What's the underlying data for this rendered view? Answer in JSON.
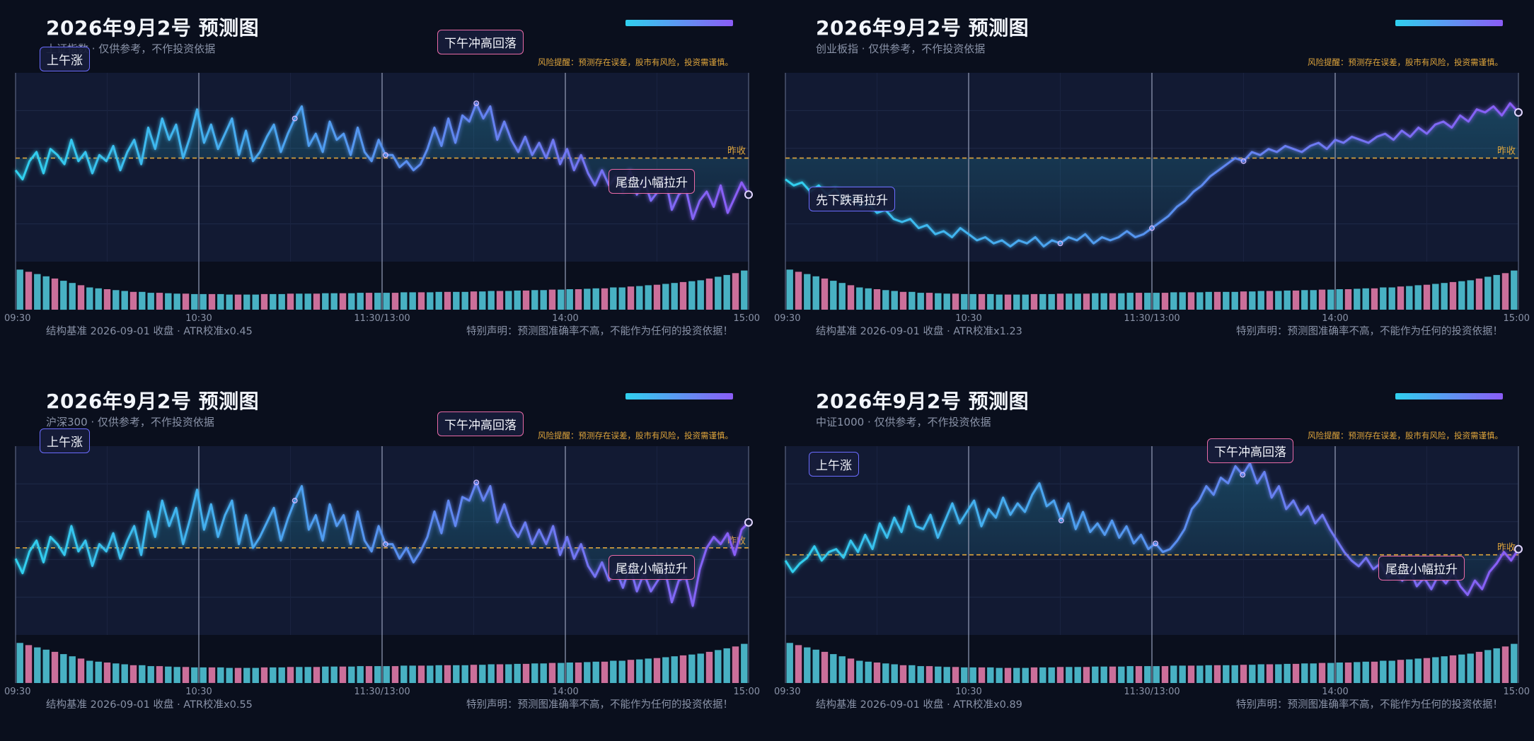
{
  "panels": [
    {
      "title": "2026年9月2号 预测图",
      "subtitle": "上证指数 · 仅供参考，不作投资依据",
      "risk_note": "风险提醒：预测存在误差，股市有风险，投资需谨慎。",
      "footer_left": "结构基准 2026-09-01 收盘 · ATR校准x0.45",
      "footer_right": "特别声明：预测图准确率不高，不能作为任何的投资依据！",
      "annotations": [
        "上午涨",
        "下午冲高回落",
        "尾盘小幅拉升"
      ],
      "prev_close_label": "昨收"
    },
    {
      "title": "2026年9月2号 预测图",
      "subtitle": "创业板指 · 仅供参考，不作投资依据",
      "risk_note": "风险提醒：预测存在误差，股市有风险，投资需谨慎。",
      "footer_left": "结构基准 2026-09-01 收盘 · ATR校准x1.23",
      "footer_right": "特别声明：预测图准确率不高，不能作为任何的投资依据！",
      "annotations": [
        "先下跌再拉升"
      ],
      "prev_close_label": "昨收"
    },
    {
      "title": "2026年9月2号 预测图",
      "subtitle": "沪深300 · 仅供参考，不作投资依据",
      "risk_note": "风险提醒：预测存在误差，股市有风险，投资需谨慎。",
      "footer_left": "结构基准 2026-09-01 收盘 · ATR校准x0.55",
      "footer_right": "特别声明：预测图准确率不高，不能作为任何的投资依据！",
      "annotations": [
        "上午涨",
        "下午冲高回落",
        "尾盘小幅拉升"
      ],
      "prev_close_label": "昨收"
    },
    {
      "title": "2026年9月2号 预测图",
      "subtitle": "中证1000 · 仅供参考，不作投资依据",
      "risk_note": "风险提醒：预测存在误差，股市有风险，投资需谨慎。",
      "footer_left": "结构基准 2026-09-01 收盘 · ATR校准x0.89",
      "footer_right": "特别声明：预测图准确率不高，不能作为任何的投资依据！",
      "annotations": [
        "上午涨",
        "下午冲高回落",
        "尾盘小幅拉升"
      ],
      "prev_close_label": "昨收"
    }
  ],
  "colors": {
    "background": "#0a0f1d",
    "plot_bg": "#121a33",
    "line_start": "#2fd0ee",
    "line_end": "#8b5cf6",
    "prev_close": "#e0a63c",
    "volume_up": "#4fc3d6",
    "volume_down": "#e07aa8",
    "risk_text": "#e0a63c"
  },
  "icons": [
    "gradient-legend-bar",
    "session-marker-dot",
    "end-point-ring"
  ],
  "chart_data": [
    {
      "type": "line",
      "x_ticks": [
        "09:30",
        "10:30",
        "11:30/13:00",
        "14:00",
        "15:00"
      ],
      "ylabel": "",
      "prev_close": 0,
      "y_range": [
        -1.7,
        1.4
      ],
      "y_unit": "relative to prev close",
      "series": [
        {
          "name": "",
          "values": [
            -0.2,
            -0.35,
            -0.05,
            0.1,
            -0.25,
            0.15,
            0.05,
            -0.1,
            0.3,
            -0.05,
            0.1,
            -0.25,
            0.05,
            -0.05,
            0.2,
            -0.2,
            0.1,
            0.3,
            -0.1,
            0.5,
            0.15,
            0.65,
            0.3,
            0.55,
            0.0,
            0.35,
            0.8,
            0.25,
            0.55,
            0.15,
            0.4,
            0.65,
            0.05,
            0.45,
            -0.05,
            0.1,
            0.35,
            0.55,
            0.1,
            0.4,
            0.65,
            0.85,
            0.2,
            0.4,
            0.1,
            0.6,
            0.3,
            0.4,
            0.05,
            0.5,
            0.1,
            -0.05,
            0.3,
            0.05,
            0.05,
            -0.15,
            -0.05,
            -0.2,
            -0.1,
            0.15,
            0.5,
            0.2,
            0.65,
            0.25,
            0.7,
            0.6,
            0.9,
            0.65,
            0.85,
            0.3,
            0.6,
            0.3,
            0.1,
            0.35,
            0.05,
            0.25,
            0.0,
            0.3,
            -0.1,
            0.15,
            -0.2,
            0.05,
            -0.25,
            -0.45,
            -0.2,
            -0.45,
            -0.3,
            -0.55,
            -0.2,
            -0.6,
            -0.35,
            -0.7,
            -0.55,
            -0.3,
            -0.85,
            -0.6,
            -0.5,
            -1.0,
            -0.7,
            -0.55,
            -0.8,
            -0.45,
            -0.9,
            -0.65,
            -0.4,
            -0.6
          ]
        }
      ],
      "volume": [
        0.9,
        0.85,
        0.8,
        0.75,
        0.7,
        0.65,
        0.6,
        0.55,
        0.5,
        0.48,
        0.46,
        0.44,
        0.42,
        0.4,
        0.4,
        0.38,
        0.38,
        0.37,
        0.36,
        0.36,
        0.35,
        0.35,
        0.35,
        0.35,
        0.34,
        0.34,
        0.34,
        0.34,
        0.35,
        0.35,
        0.35,
        0.36,
        0.36,
        0.36,
        0.36,
        0.37,
        0.37,
        0.37,
        0.37,
        0.38,
        0.38,
        0.38,
        0.38,
        0.38,
        0.39,
        0.39,
        0.39,
        0.39,
        0.4,
        0.4,
        0.4,
        0.4,
        0.41,
        0.41,
        0.42,
        0.42,
        0.42,
        0.43,
        0.43,
        0.44,
        0.44,
        0.45,
        0.45,
        0.46,
        0.46,
        0.47,
        0.48,
        0.48,
        0.5,
        0.5,
        0.52,
        0.53,
        0.55,
        0.56,
        0.58,
        0.6,
        0.62,
        0.64,
        0.66,
        0.7,
        0.74,
        0.78,
        0.82,
        0.88
      ]
    },
    {
      "type": "line",
      "x_ticks": [
        "09:30",
        "10:30",
        "11:30/13:00",
        "14:00",
        "15:00"
      ],
      "ylabel": "",
      "prev_close": 0,
      "y_range": [
        -1.7,
        1.4
      ],
      "y_unit": "relative to prev close",
      "series": [
        {
          "name": "",
          "values": [
            -0.35,
            -0.45,
            -0.4,
            -0.55,
            -0.45,
            -0.6,
            -0.5,
            -0.7,
            -0.65,
            -0.8,
            -0.75,
            -0.9,
            -0.85,
            -1.0,
            -1.05,
            -1.0,
            -1.15,
            -1.1,
            -1.25,
            -1.2,
            -1.3,
            -1.15,
            -1.25,
            -1.35,
            -1.3,
            -1.4,
            -1.35,
            -1.45,
            -1.35,
            -1.4,
            -1.3,
            -1.45,
            -1.35,
            -1.4,
            -1.3,
            -1.35,
            -1.25,
            -1.4,
            -1.3,
            -1.35,
            -1.3,
            -1.2,
            -1.3,
            -1.25,
            -1.15,
            -1.05,
            -0.95,
            -0.8,
            -0.7,
            -0.55,
            -0.45,
            -0.3,
            -0.2,
            -0.1,
            0.0,
            -0.05,
            0.1,
            0.05,
            0.15,
            0.1,
            0.2,
            0.15,
            0.1,
            0.2,
            0.25,
            0.15,
            0.3,
            0.25,
            0.35,
            0.3,
            0.25,
            0.35,
            0.4,
            0.3,
            0.45,
            0.35,
            0.5,
            0.4,
            0.55,
            0.6,
            0.5,
            0.7,
            0.6,
            0.8,
            0.75,
            0.85,
            0.7,
            0.9,
            0.75
          ]
        }
      ],
      "volume": [
        0.9,
        0.85,
        0.8,
        0.75,
        0.7,
        0.65,
        0.6,
        0.55,
        0.5,
        0.48,
        0.46,
        0.44,
        0.42,
        0.4,
        0.4,
        0.38,
        0.38,
        0.37,
        0.36,
        0.36,
        0.35,
        0.35,
        0.35,
        0.35,
        0.34,
        0.34,
        0.34,
        0.34,
        0.35,
        0.35,
        0.35,
        0.36,
        0.36,
        0.36,
        0.36,
        0.37,
        0.37,
        0.37,
        0.37,
        0.38,
        0.38,
        0.38,
        0.38,
        0.38,
        0.39,
        0.39,
        0.39,
        0.39,
        0.4,
        0.4,
        0.4,
        0.4,
        0.41,
        0.41,
        0.42,
        0.42,
        0.42,
        0.43,
        0.43,
        0.44,
        0.44,
        0.45,
        0.45,
        0.46,
        0.46,
        0.47,
        0.48,
        0.48,
        0.5,
        0.5,
        0.52,
        0.53,
        0.55,
        0.56,
        0.58,
        0.6,
        0.62,
        0.64,
        0.66,
        0.7,
        0.74,
        0.78,
        0.82,
        0.88
      ]
    },
    {
      "type": "line",
      "x_ticks": [
        "09:30",
        "10:30",
        "11:30/13:00",
        "14:00",
        "15:00"
      ],
      "ylabel": "",
      "prev_close": 0,
      "y_range": [
        -1.2,
        1.4
      ],
      "y_unit": "relative to prev close",
      "series": [
        {
          "name": "",
          "values": [
            -0.15,
            -0.35,
            -0.05,
            0.1,
            -0.2,
            0.15,
            0.05,
            -0.1,
            0.3,
            -0.05,
            0.1,
            -0.25,
            0.05,
            -0.05,
            0.2,
            -0.15,
            0.1,
            0.3,
            -0.1,
            0.5,
            0.15,
            0.65,
            0.3,
            0.55,
            0.05,
            0.4,
            0.8,
            0.25,
            0.6,
            0.15,
            0.45,
            0.65,
            0.05,
            0.45,
            0.0,
            0.15,
            0.35,
            0.55,
            0.1,
            0.4,
            0.65,
            0.85,
            0.25,
            0.45,
            0.1,
            0.6,
            0.3,
            0.45,
            0.05,
            0.5,
            0.1,
            -0.05,
            0.3,
            0.05,
            0.05,
            -0.15,
            0.0,
            -0.2,
            -0.05,
            0.15,
            0.5,
            0.2,
            0.65,
            0.3,
            0.7,
            0.65,
            0.9,
            0.65,
            0.85,
            0.35,
            0.6,
            0.3,
            0.15,
            0.35,
            0.05,
            0.25,
            0.05,
            0.3,
            -0.1,
            0.15,
            -0.15,
            0.05,
            -0.25,
            -0.4,
            -0.2,
            -0.45,
            -0.3,
            -0.55,
            -0.25,
            -0.6,
            -0.35,
            -0.6,
            -0.45,
            -0.3,
            -0.75,
            -0.45,
            -0.4,
            -0.8,
            -0.3,
            0.0,
            0.15,
            0.05,
            0.2,
            -0.1,
            0.25,
            0.35
          ]
        }
      ],
      "volume": [
        0.9,
        0.85,
        0.8,
        0.75,
        0.7,
        0.65,
        0.6,
        0.55,
        0.5,
        0.48,
        0.46,
        0.44,
        0.42,
        0.4,
        0.4,
        0.38,
        0.38,
        0.37,
        0.36,
        0.36,
        0.35,
        0.35,
        0.35,
        0.35,
        0.34,
        0.34,
        0.34,
        0.34,
        0.35,
        0.35,
        0.35,
        0.36,
        0.36,
        0.36,
        0.36,
        0.37,
        0.37,
        0.37,
        0.37,
        0.38,
        0.38,
        0.38,
        0.38,
        0.38,
        0.39,
        0.39,
        0.39,
        0.39,
        0.4,
        0.4,
        0.4,
        0.4,
        0.41,
        0.41,
        0.42,
        0.42,
        0.42,
        0.43,
        0.43,
        0.44,
        0.44,
        0.45,
        0.45,
        0.46,
        0.46,
        0.47,
        0.48,
        0.48,
        0.5,
        0.5,
        0.52,
        0.53,
        0.55,
        0.56,
        0.58,
        0.6,
        0.62,
        0.64,
        0.66,
        0.7,
        0.74,
        0.78,
        0.82,
        0.88
      ]
    },
    {
      "type": "line",
      "x_ticks": [
        "09:30",
        "10:30",
        "11:30/13:00",
        "14:00",
        "15:00"
      ],
      "ylabel": "",
      "prev_close": 0,
      "y_range": [
        -1.4,
        1.9
      ],
      "y_unit": "relative to prev close",
      "series": [
        {
          "name": "",
          "values": [
            -0.1,
            -0.3,
            -0.15,
            -0.05,
            0.15,
            -0.1,
            0.05,
            0.1,
            -0.05,
            0.25,
            0.05,
            0.35,
            0.1,
            0.55,
            0.3,
            0.65,
            0.4,
            0.85,
            0.5,
            0.45,
            0.7,
            0.3,
            0.6,
            0.9,
            0.55,
            0.75,
            0.95,
            0.5,
            0.8,
            0.65,
            1.0,
            0.7,
            0.9,
            0.75,
            1.05,
            1.25,
            0.85,
            0.95,
            0.6,
            0.9,
            0.45,
            0.75,
            0.4,
            0.55,
            0.35,
            0.6,
            0.3,
            0.5,
            0.2,
            0.35,
            0.1,
            0.2,
            0.05,
            0.1,
            0.25,
            0.45,
            0.8,
            0.95,
            1.2,
            1.05,
            1.35,
            1.25,
            1.55,
            1.4,
            1.6,
            1.25,
            1.45,
            1.0,
            1.2,
            0.8,
            0.95,
            0.7,
            0.85,
            0.55,
            0.7,
            0.45,
            0.25,
            0.05,
            -0.1,
            -0.2,
            -0.05,
            -0.25,
            -0.15,
            -0.4,
            -0.3,
            -0.45,
            -0.25,
            -0.55,
            -0.4,
            -0.6,
            -0.35,
            -0.5,
            -0.3,
            -0.55,
            -0.7,
            -0.45,
            -0.6,
            -0.3,
            -0.15,
            0.05,
            -0.1,
            0.1
          ]
        }
      ],
      "volume": [
        0.9,
        0.85,
        0.8,
        0.75,
        0.7,
        0.65,
        0.6,
        0.55,
        0.5,
        0.48,
        0.46,
        0.44,
        0.42,
        0.4,
        0.4,
        0.38,
        0.38,
        0.37,
        0.36,
        0.36,
        0.35,
        0.35,
        0.35,
        0.35,
        0.34,
        0.34,
        0.34,
        0.34,
        0.35,
        0.35,
        0.35,
        0.36,
        0.36,
        0.36,
        0.36,
        0.37,
        0.37,
        0.37,
        0.37,
        0.38,
        0.38,
        0.38,
        0.38,
        0.38,
        0.39,
        0.39,
        0.39,
        0.39,
        0.4,
        0.4,
        0.4,
        0.4,
        0.41,
        0.41,
        0.42,
        0.42,
        0.42,
        0.43,
        0.43,
        0.44,
        0.44,
        0.45,
        0.45,
        0.46,
        0.46,
        0.47,
        0.48,
        0.48,
        0.5,
        0.5,
        0.52,
        0.53,
        0.55,
        0.56,
        0.58,
        0.6,
        0.62,
        0.64,
        0.66,
        0.7,
        0.74,
        0.78,
        0.82,
        0.88
      ]
    }
  ]
}
